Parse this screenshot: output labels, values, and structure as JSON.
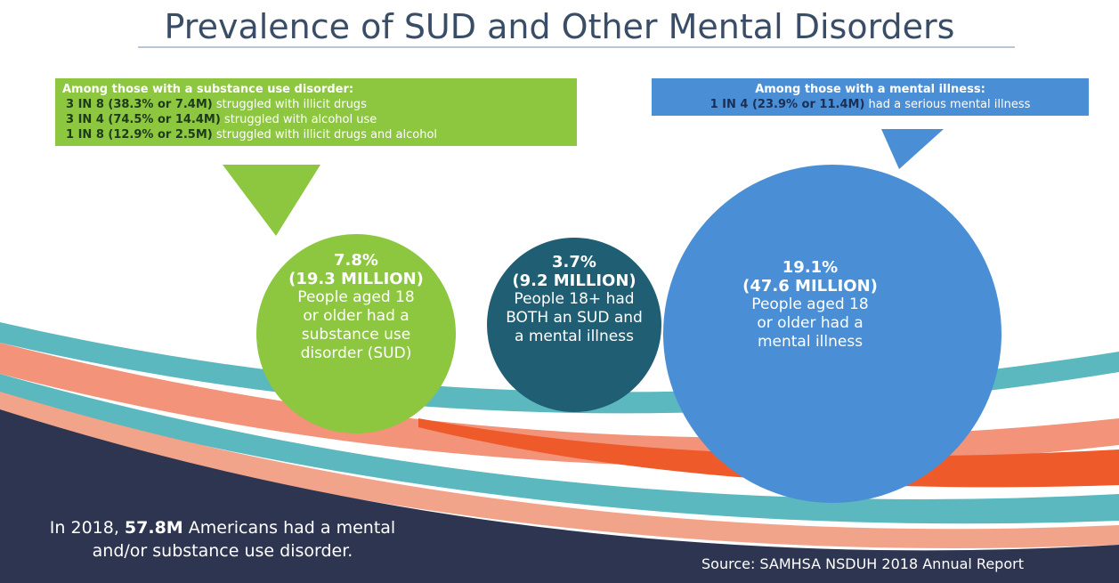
{
  "header": {
    "title": "Prevalence of SUD and Other Mental Disorders"
  },
  "sud_callout": {
    "heading": "Among those with a substance use disorder:",
    "rows": [
      {
        "bold": "3 IN 8 (38.3% or 7.4M)",
        "text": "struggled with illicit drugs"
      },
      {
        "bold": "3 IN 4 (74.5% or 14.4M)",
        "text": "struggled with alcohol use"
      },
      {
        "bold": "1 IN 8 (12.9% or 2.5M)",
        "text": "struggled with illicit drugs and alcohol"
      }
    ]
  },
  "mi_callout": {
    "heading": "Among those with a mental illness:",
    "rows": [
      {
        "bold": "1 IN 4 (23.9% or 11.4M)",
        "text": "had a serious mental illness"
      }
    ]
  },
  "circles": [
    {
      "percent": "7.8%",
      "millions": "(19.3 MILLION)",
      "lines": [
        "People aged 18",
        "or older had a",
        "substance use",
        "disorder (SUD)"
      ]
    },
    {
      "percent": "3.7%",
      "millions": "(9.2 MILLION)",
      "lines": [
        "People 18+ had",
        "BOTH an SUD and",
        "a mental illness"
      ]
    },
    {
      "percent": "19.1%",
      "millions": "(47.6 MILLION)",
      "lines": [
        "People aged 18",
        "or older had a",
        "mental illness"
      ]
    }
  ],
  "footer": {
    "prefix": "In 2018,",
    "bold": "57.8M",
    "line1_rest": "Americans had a mental",
    "line2": "and/or substance use disorder."
  },
  "source": "Source: SAMHSA NSDUH 2018 Annual Report"
}
